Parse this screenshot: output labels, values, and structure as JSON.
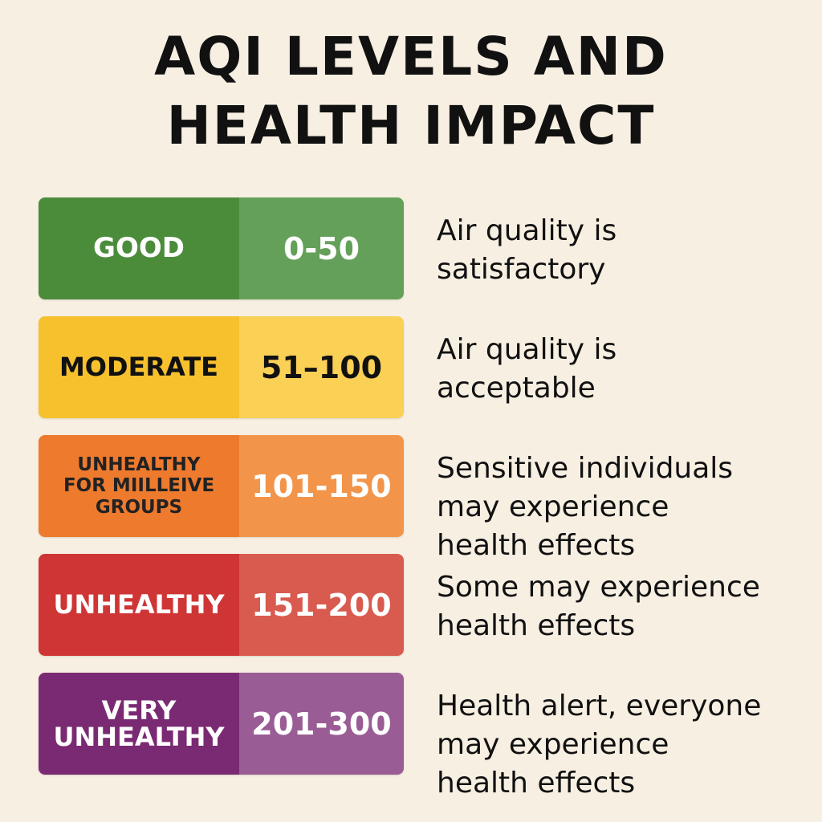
{
  "title": {
    "line1": "AQI LEVELS AND",
    "line2": "HEALTH IMPACT"
  },
  "levels": [
    {
      "label": "GOOD",
      "range": "0-50",
      "description": "Air quality is\nsatisfactory",
      "label_color": "#4a8c3a",
      "range_color": "#65a05a",
      "text_color": "#ffffff"
    },
    {
      "label": "MODERATE",
      "range": "51–100",
      "description": "Air quality is\nacceptable",
      "label_color": "#f7c12e",
      "range_color": "#fad055",
      "text_color": "#111111"
    },
    {
      "label": "UNHEALTHY\nFOR MIILLEIVE\nGROUPS",
      "range": "101-150",
      "description": "Sensitive individuals\nmay experience\nhealth effects",
      "label_color": "#ee7a2e",
      "range_color": "#f2954a",
      "text_color": "#222222",
      "range_text_color": "#ffffff"
    },
    {
      "label": "UNHEALTHY",
      "range": "151-200",
      "description": "Some may experience\nhealth effects",
      "label_color": "#cf3535",
      "range_color": "#d95a4e",
      "text_color": "#ffffff"
    },
    {
      "label": "VERY\nUNHEALTHY",
      "range": "201-300",
      "description": "Health alert, everyone\nmay experience\nhealth effects",
      "label_color": "#7a2a72",
      "range_color": "#9a5c94",
      "text_color": "#ffffff"
    }
  ]
}
